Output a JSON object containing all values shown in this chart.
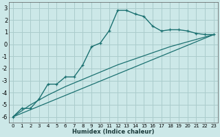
{
  "xlabel": "Humidex (Indice chaleur)",
  "bg_color": "#cce8e8",
  "grid_color": "#aacccc",
  "line_color": "#1a7070",
  "xlim": [
    -0.5,
    23.5
  ],
  "ylim": [
    -6.5,
    3.5
  ],
  "xticks": [
    0,
    1,
    2,
    3,
    4,
    5,
    6,
    7,
    8,
    9,
    10,
    11,
    12,
    13,
    14,
    15,
    16,
    17,
    18,
    19,
    20,
    21,
    22,
    23
  ],
  "yticks": [
    -6,
    -5,
    -4,
    -3,
    -2,
    -1,
    0,
    1,
    2,
    3
  ],
  "series1_x": [
    0,
    1,
    2,
    3,
    4,
    5,
    6,
    7,
    8,
    9,
    10,
    11,
    12,
    13,
    14,
    15,
    16,
    17,
    18,
    19,
    20,
    21,
    22,
    23
  ],
  "series1_y": [
    -6.0,
    -5.3,
    -5.3,
    -4.5,
    -3.3,
    -3.3,
    -2.7,
    -2.7,
    -1.7,
    -0.2,
    0.1,
    1.1,
    2.8,
    2.8,
    2.5,
    2.3,
    1.5,
    1.1,
    1.2,
    1.2,
    1.1,
    0.9,
    0.8,
    0.8
  ],
  "series2_x": [
    0,
    23
  ],
  "series2_y": [
    -6.0,
    0.8
  ],
  "series3_x": [
    0,
    2,
    4,
    6,
    8,
    10,
    12,
    14,
    16,
    18,
    20,
    22,
    23
  ],
  "series3_y": [
    -6.0,
    -5.0,
    -4.2,
    -3.5,
    -2.9,
    -2.3,
    -1.7,
    -1.2,
    -0.7,
    -0.2,
    0.2,
    0.6,
    0.8
  ]
}
